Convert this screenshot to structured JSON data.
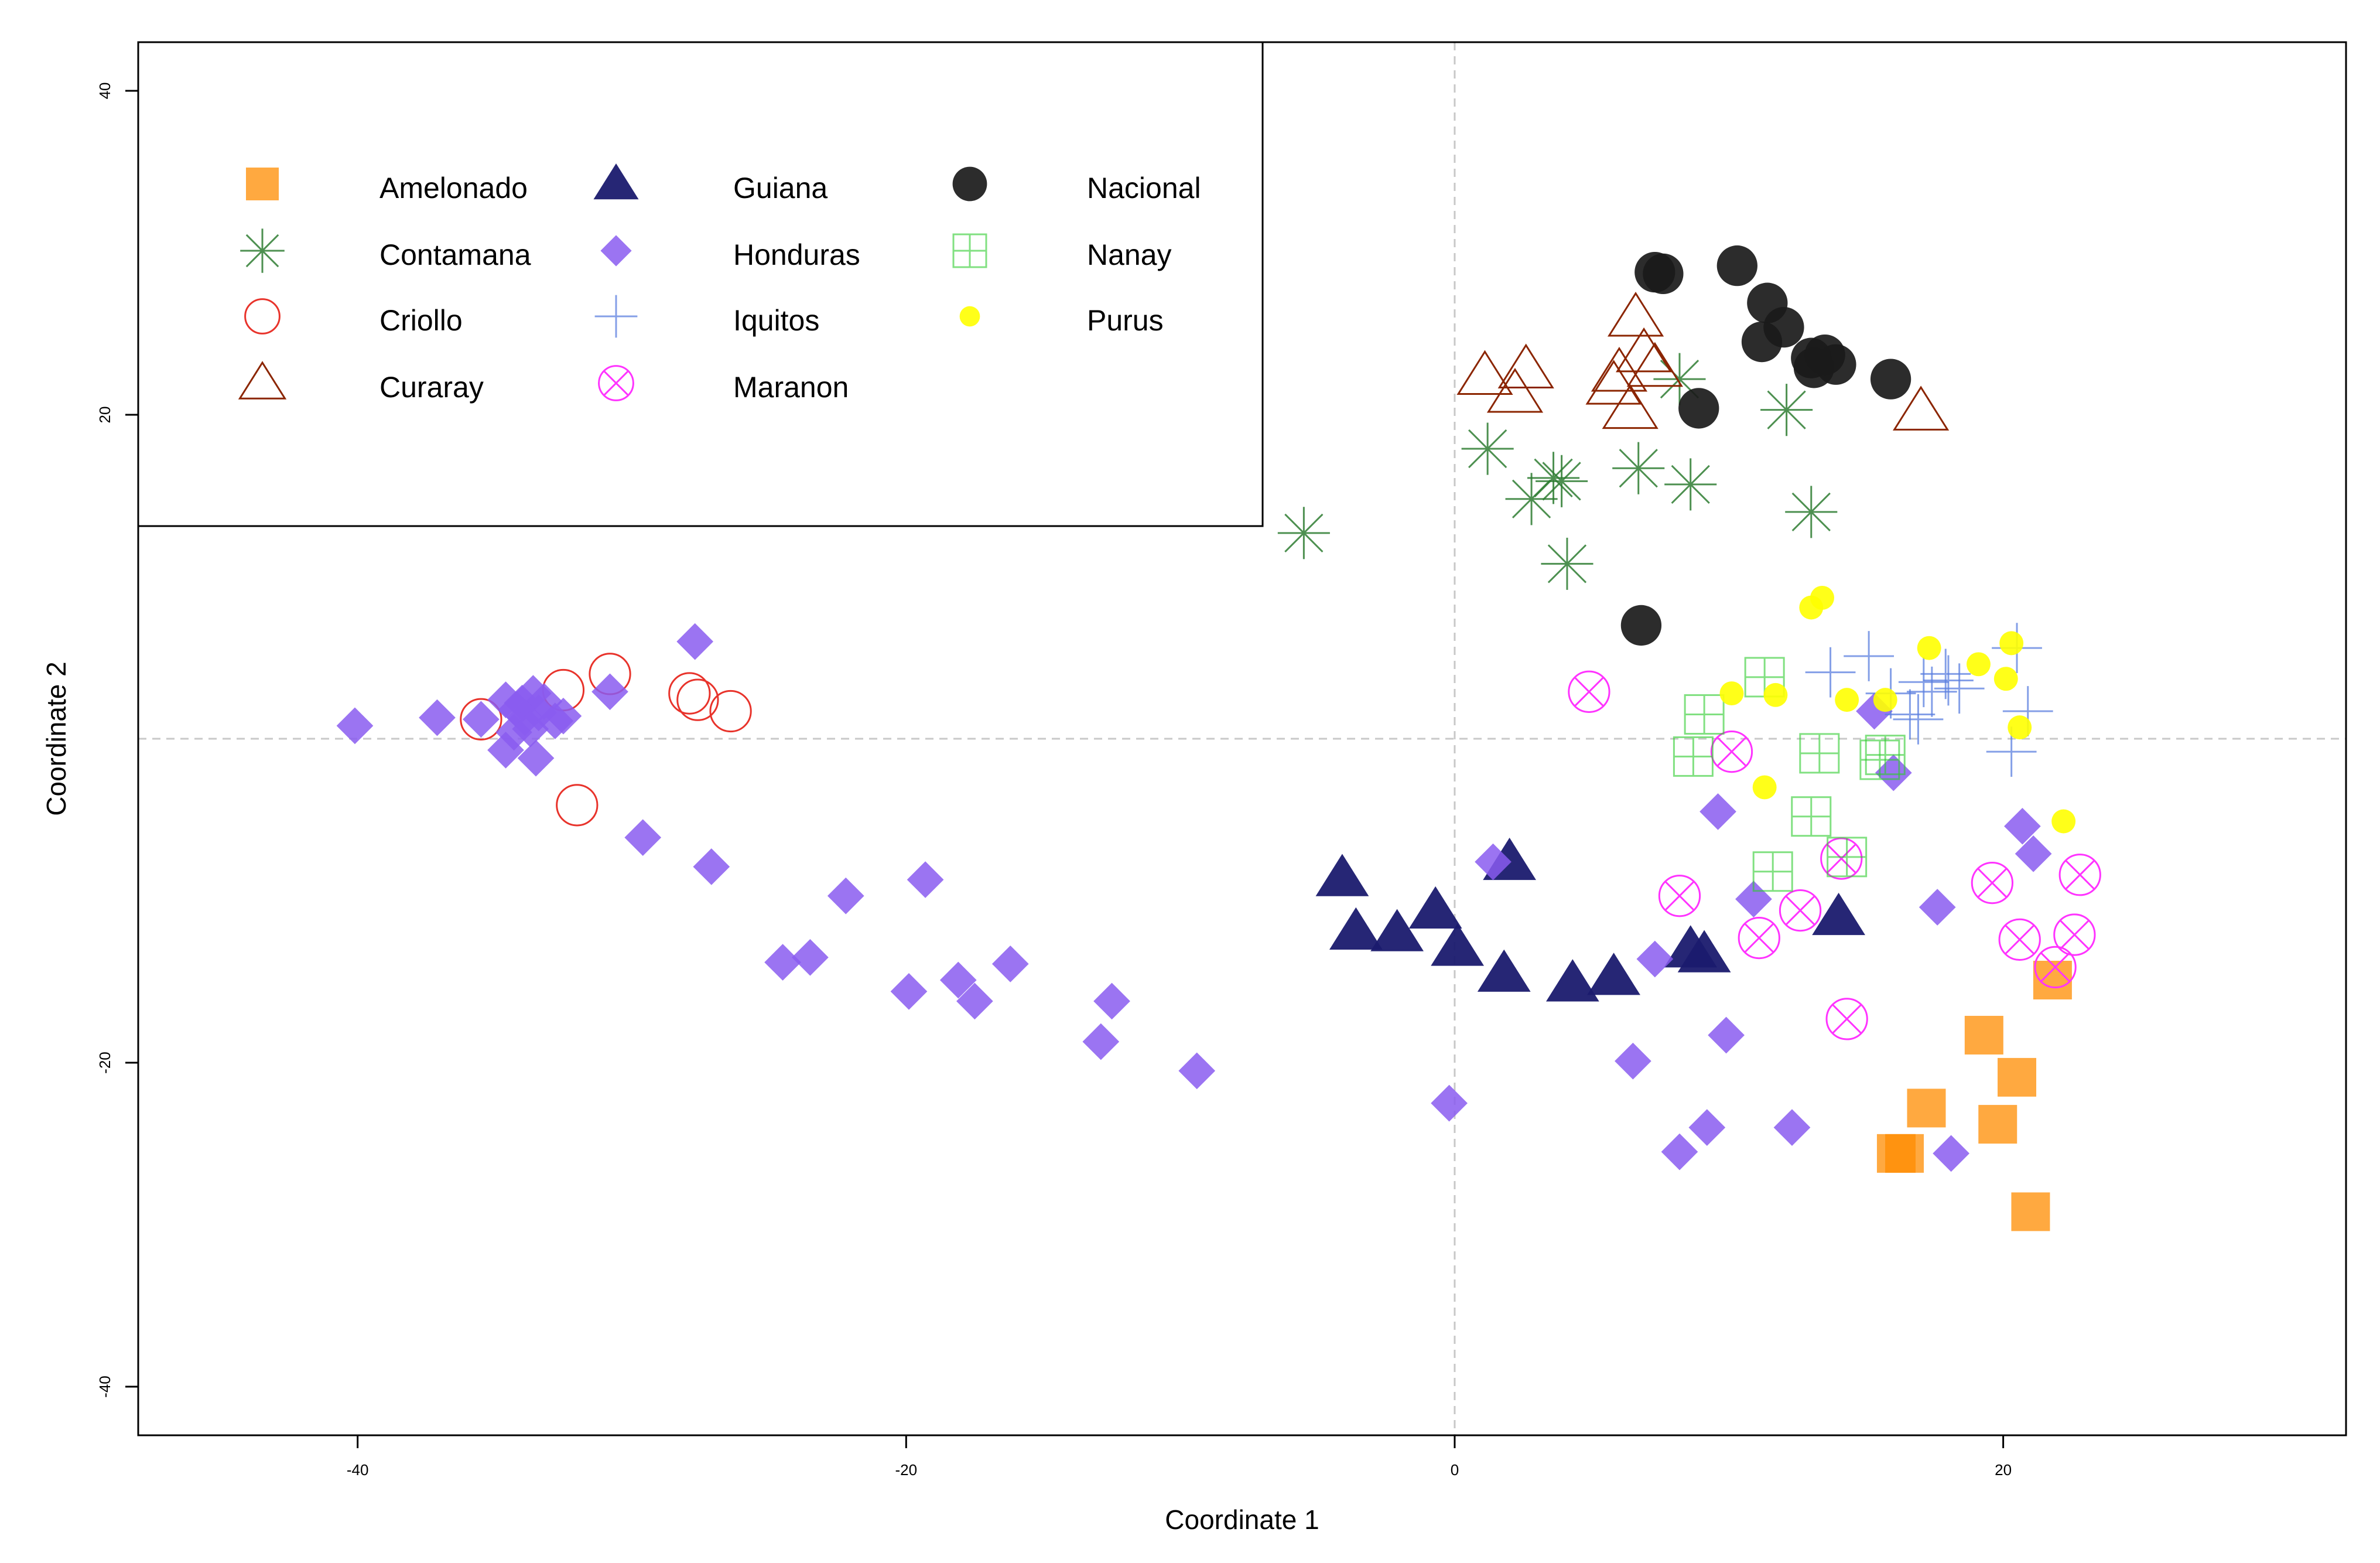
{
  "chart_data": {
    "type": "scatter",
    "title": "",
    "xlabel": "Coordinate 1",
    "ylabel": "Coordinate 2",
    "xlim": [
      -48,
      32.5
    ],
    "ylim": [
      -43,
      43
    ],
    "xticks": [
      -40,
      -20,
      0,
      20
    ],
    "yticks": [
      -40,
      -20,
      20,
      40
    ],
    "reference_lines": {
      "x": 0,
      "y": 0,
      "style": "dashed"
    },
    "legend": {
      "placement": "top-left",
      "columns": 3
    },
    "series": [
      {
        "name": "Amelonado",
        "symbol": "square",
        "color": "#ff8c00",
        "opacity": 0.75,
        "points": [
          [
            21.8,
            -14.9
          ],
          [
            19.3,
            -18.3
          ],
          [
            20.5,
            -20.9
          ],
          [
            17.2,
            -22.8
          ],
          [
            19.8,
            -23.8
          ],
          [
            16.4,
            -25.6
          ],
          [
            16.1,
            -25.6
          ],
          [
            21.0,
            -29.2
          ]
        ]
      },
      {
        "name": "Contamana",
        "symbol": "asterisk",
        "color": "#2e7d32",
        "opacity": 0.85,
        "points": [
          [
            -5.5,
            12.7
          ],
          [
            1.2,
            17.9
          ],
          [
            2.8,
            14.8
          ],
          [
            3.6,
            16.1
          ],
          [
            3.9,
            15.9
          ],
          [
            4.1,
            10.8
          ],
          [
            6.7,
            16.7
          ],
          [
            8.6,
            15.7
          ],
          [
            8.2,
            22.2
          ],
          [
            12.1,
            20.3
          ],
          [
            13.0,
            14.0
          ]
        ]
      },
      {
        "name": "Criollo",
        "symbol": "circle-open",
        "color": "#e8332b",
        "opacity": 1,
        "points": [
          [
            -35.5,
            1.2
          ],
          [
            -32.5,
            3.0
          ],
          [
            -30.8,
            4.0
          ],
          [
            -27.9,
            2.8
          ],
          [
            -27.6,
            2.4
          ],
          [
            -26.4,
            1.7
          ],
          [
            -32.0,
            -4.1
          ]
        ]
      },
      {
        "name": "Curaray",
        "symbol": "triangle-open",
        "color": "#8b2500",
        "opacity": 1,
        "points": [
          [
            1.1,
            22.4
          ],
          [
            2.6,
            22.8
          ],
          [
            2.2,
            21.3
          ],
          [
            6.0,
            22.6
          ],
          [
            5.8,
            21.8
          ],
          [
            6.4,
            20.3
          ],
          [
            6.9,
            23.8
          ],
          [
            6.6,
            26.0
          ],
          [
            17.0,
            20.2
          ],
          [
            7.3,
            22.9
          ]
        ]
      },
      {
        "name": "Guiana",
        "symbol": "triangle",
        "color": "#1a1a6e",
        "opacity": 0.95,
        "points": [
          [
            -4.1,
            -8.6
          ],
          [
            -3.6,
            -11.9
          ],
          [
            -2.1,
            -12.0
          ],
          [
            -0.7,
            -10.6
          ],
          [
            0.1,
            -12.9
          ],
          [
            2.0,
            -7.6
          ],
          [
            1.8,
            -14.5
          ],
          [
            4.3,
            -15.1
          ],
          [
            5.8,
            -14.7
          ],
          [
            8.6,
            -13.0
          ],
          [
            9.1,
            -13.3
          ],
          [
            14.0,
            -11.0
          ]
        ]
      },
      {
        "name": "Honduras",
        "symbol": "diamond",
        "color": "#8a5cf0",
        "opacity": 0.85,
        "points": [
          [
            -40.1,
            0.8
          ],
          [
            -37.1,
            1.3
          ],
          [
            -35.5,
            1.2
          ],
          [
            -34.6,
            2.4
          ],
          [
            -34.2,
            1.8
          ],
          [
            -34.0,
            2.2
          ],
          [
            -33.6,
            2.8
          ],
          [
            -33.2,
            2.3
          ],
          [
            -33.9,
            1.3
          ],
          [
            -34.3,
            0.4
          ],
          [
            -33.7,
            0.6
          ],
          [
            -33.4,
            1.6
          ],
          [
            -32.8,
            1.1
          ],
          [
            -32.5,
            1.4
          ],
          [
            -34.6,
            -0.7
          ],
          [
            -33.5,
            -1.2
          ],
          [
            -30.8,
            2.9
          ],
          [
            -27.7,
            6.0
          ],
          [
            -29.6,
            -6.1
          ],
          [
            -27.1,
            -7.9
          ],
          [
            -22.2,
            -9.7
          ],
          [
            -24.5,
            -13.8
          ],
          [
            -23.5,
            -13.5
          ],
          [
            -19.9,
            -15.6
          ],
          [
            -19.3,
            -8.7
          ],
          [
            -18.1,
            -14.9
          ],
          [
            -17.5,
            -16.2
          ],
          [
            -16.2,
            -13.9
          ],
          [
            -12.9,
            -18.7
          ],
          [
            -12.5,
            -16.2
          ],
          [
            -9.4,
            -20.5
          ],
          [
            -0.2,
            -22.5
          ],
          [
            1.4,
            -7.6
          ],
          [
            6.5,
            -19.9
          ],
          [
            7.3,
            -13.6
          ],
          [
            8.2,
            -25.5
          ],
          [
            9.2,
            -24.0
          ],
          [
            9.6,
            -4.5
          ],
          [
            9.9,
            -18.3
          ],
          [
            10.9,
            -9.9
          ],
          [
            12.3,
            -24.0
          ],
          [
            15.3,
            1.7
          ],
          [
            16.0,
            -2.1
          ],
          [
            17.6,
            -10.4
          ],
          [
            18.1,
            -25.6
          ],
          [
            20.7,
            -5.4
          ],
          [
            21.1,
            -7.1
          ]
        ]
      },
      {
        "name": "Iquitos",
        "symbol": "plus",
        "color": "#5b7fe0",
        "opacity": 0.75,
        "points": [
          [
            13.7,
            4.1
          ],
          [
            15.1,
            5.1
          ],
          [
            15.9,
            2.8
          ],
          [
            16.6,
            1.5
          ],
          [
            16.9,
            1.2
          ],
          [
            17.1,
            3.5
          ],
          [
            17.4,
            2.9
          ],
          [
            17.9,
            4.0
          ],
          [
            18.0,
            3.6
          ],
          [
            18.4,
            3.1
          ],
          [
            20.5,
            5.6
          ],
          [
            20.3,
            -0.8
          ],
          [
            20.9,
            1.7
          ]
        ]
      },
      {
        "name": "Maranon",
        "symbol": "circle-x",
        "color": "#ff33ff",
        "opacity": 1,
        "points": [
          [
            4.9,
            2.9
          ],
          [
            8.2,
            -9.7
          ],
          [
            10.1,
            -0.8
          ],
          [
            11.1,
            -12.3
          ],
          [
            12.6,
            -10.6
          ],
          [
            14.1,
            -7.4
          ],
          [
            14.3,
            -17.3
          ],
          [
            19.6,
            -8.9
          ],
          [
            20.6,
            -12.4
          ],
          [
            21.9,
            -14.1
          ],
          [
            22.6,
            -12.1
          ],
          [
            22.8,
            -8.4
          ]
        ]
      },
      {
        "name": "Nacional",
        "symbol": "circle",
        "color": "#1a1a1a",
        "opacity": 0.92,
        "points": [
          [
            6.8,
            7.0
          ],
          [
            7.3,
            28.8
          ],
          [
            7.6,
            28.7
          ],
          [
            8.9,
            20.4
          ],
          [
            10.3,
            29.2
          ],
          [
            11.2,
            24.5
          ],
          [
            11.4,
            26.9
          ],
          [
            12.0,
            25.4
          ],
          [
            13.0,
            23.5
          ],
          [
            13.1,
            22.9
          ],
          [
            13.5,
            23.7
          ],
          [
            13.9,
            23.1
          ],
          [
            15.9,
            22.2
          ]
        ]
      },
      {
        "name": "Nanay",
        "symbol": "square-plus",
        "color": "#2ecc2e",
        "opacity": 0.6,
        "points": [
          [
            8.7,
            -1.1
          ],
          [
            9.1,
            1.5
          ],
          [
            11.3,
            3.8
          ],
          [
            11.6,
            -8.2
          ],
          [
            13.0,
            -4.8
          ],
          [
            13.3,
            -0.9
          ],
          [
            14.3,
            -7.3
          ],
          [
            15.5,
            -1.3
          ],
          [
            15.7,
            -1.0
          ]
        ]
      },
      {
        "name": "Purus",
        "symbol": "dot",
        "color": "#ffff00",
        "opacity": 0.9,
        "points": [
          [
            10.1,
            2.8
          ],
          [
            11.7,
            2.7
          ],
          [
            11.3,
            -3.0
          ],
          [
            13.0,
            8.1
          ],
          [
            13.4,
            8.7
          ],
          [
            14.3,
            2.4
          ],
          [
            15.7,
            2.4
          ],
          [
            17.3,
            5.6
          ],
          [
            19.1,
            4.6
          ],
          [
            20.1,
            3.7
          ],
          [
            20.3,
            5.9
          ],
          [
            20.6,
            0.7
          ],
          [
            22.2,
            -5.1
          ]
        ]
      }
    ]
  }
}
